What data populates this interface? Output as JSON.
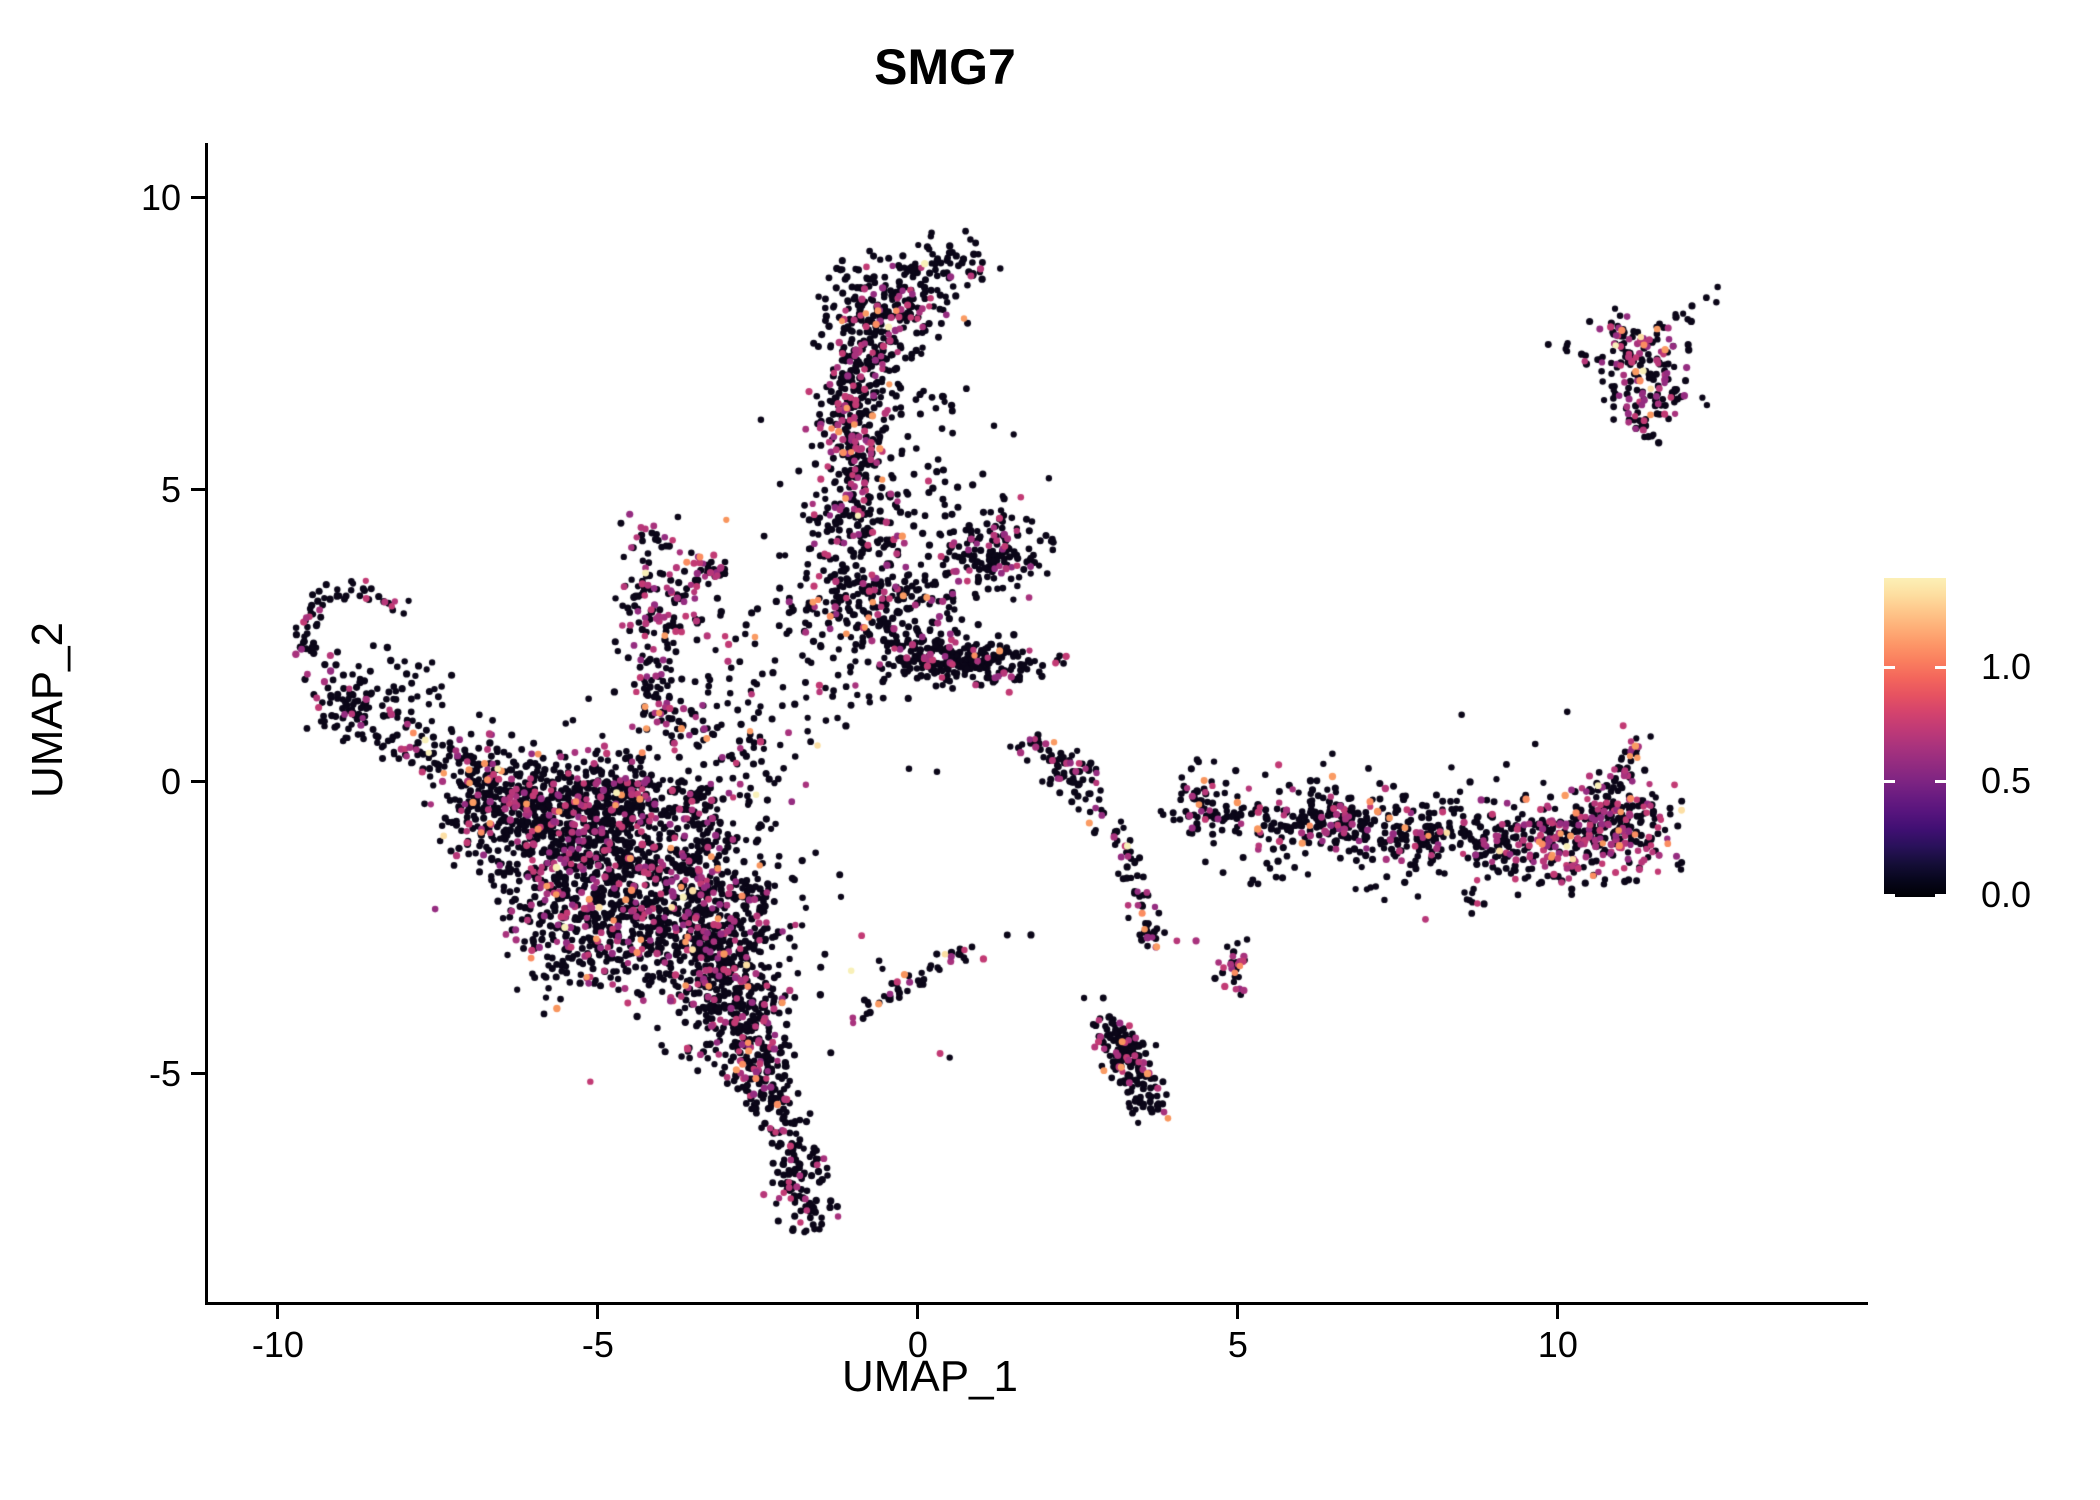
{
  "figure": {
    "background": "#ffffff"
  },
  "chart_data": {
    "type": "scatter",
    "title": "SMG7",
    "xlabel": "UMAP_1",
    "ylabel": "UMAP_2",
    "xlim": [
      -11.14,
      14.8
    ],
    "ylim": [
      -8.905,
      10.94
    ],
    "x_ticks": [
      -10,
      -5,
      0,
      5,
      10
    ],
    "y_ticks": [
      10,
      5,
      0,
      -5
    ],
    "grid": false,
    "legend_position": "right",
    "colorbar": {
      "tick_labels": [
        "1.0",
        "0.5",
        "0.0"
      ],
      "tick_values": [
        1.0,
        0.5,
        0.0
      ],
      "vmin": 0.0,
      "vmax": 1.39,
      "gradient_bottom_to_top": [
        "#000004",
        "#07061c",
        "#150e38",
        "#29115a",
        "#3f0f72",
        "#56147d",
        "#6a1c81",
        "#802582",
        "#952c80",
        "#aa337d",
        "#c03a76",
        "#d4436d",
        "#e65261",
        "#f3655c",
        "#fa7d5e",
        "#fd9567",
        "#feae77",
        "#fec68a",
        "#fddea0",
        "#fcf0b6"
      ]
    },
    "point_radius": 3.4,
    "palette": {
      "b": [
        "#0b0618"
      ],
      "m": [
        "#b73779",
        "#a8327d",
        "#c23a74",
        "#952c80"
      ],
      "o": [
        "#f8955d",
        "#fb8d61",
        "#fa9b63"
      ],
      "p": [
        "#fcdfa4",
        "#f8f0b8"
      ]
    },
    "mixes": {
      "low": [
        0.895,
        0.09,
        0.012,
        0.003
      ],
      "mid": [
        0.795,
        0.18,
        0.02,
        0.005
      ],
      "high": [
        0.6,
        0.345,
        0.045,
        0.01
      ]
    },
    "seed": 7,
    "clusters": [
      {
        "t": "g",
        "x": -0.55,
        "y": 8.05,
        "sx": 0.5,
        "sy": 0.48,
        "n": 240,
        "m": "mid"
      },
      {
        "t": "g",
        "x": 0.62,
        "y": 8.95,
        "sx": 0.28,
        "sy": 0.24,
        "n": 40,
        "m": "low"
      },
      {
        "t": "g",
        "x": -0.9,
        "y": 7.0,
        "sx": 0.34,
        "sy": 0.45,
        "n": 120,
        "m": "mid"
      },
      {
        "t": "s",
        "x1": -0.15,
        "y1": 8.5,
        "x2": 0.32,
        "y2": 8.72,
        "j": 0.14,
        "n": 10,
        "m": "low"
      },
      {
        "t": "g",
        "x": -1.02,
        "y": 5.9,
        "sx": 0.3,
        "sy": 0.5,
        "n": 150,
        "m": "high"
      },
      {
        "t": "g",
        "x": -1.08,
        "y": 4.6,
        "sx": 0.35,
        "sy": 0.5,
        "n": 150,
        "m": "mid"
      },
      {
        "t": "g",
        "x": -0.75,
        "y": 3.1,
        "sx": 0.6,
        "sy": 0.5,
        "n": 260,
        "m": "mid"
      },
      {
        "t": "g",
        "x": 1.05,
        "y": 3.9,
        "sx": 0.45,
        "sy": 0.4,
        "n": 170,
        "m": "mid"
      },
      {
        "t": "g",
        "x": 0.9,
        "y": 2.05,
        "sx": 0.55,
        "sy": 0.2,
        "n": 150,
        "m": "low"
      },
      {
        "t": "g",
        "x": 0.05,
        "y": 2.2,
        "sx": 0.45,
        "sy": 0.3,
        "n": 120,
        "m": "mid"
      },
      {
        "t": "g",
        "x": -0.1,
        "y": 5.6,
        "sx": 0.5,
        "sy": 0.8,
        "n": 55,
        "m": "low"
      },
      {
        "t": "s",
        "x1": -4.5,
        "y1": 4.42,
        "x2": -3.05,
        "y2": 3.52,
        "j": 0.1,
        "n": 32,
        "m": "high"
      },
      {
        "t": "s",
        "x1": -4.42,
        "y1": 4.25,
        "x2": -4.1,
        "y2": 1.65,
        "j": 0.12,
        "n": 40,
        "m": "high"
      },
      {
        "t": "g",
        "x": -4.0,
        "y": 3.0,
        "sx": 0.38,
        "sy": 0.65,
        "rot": -20,
        "n": 110,
        "m": "high"
      },
      {
        "t": "g",
        "x": -4.15,
        "y": 1.35,
        "sx": 0.18,
        "sy": 0.3,
        "n": 40,
        "m": "high"
      },
      {
        "t": "s",
        "x1": -3.95,
        "y1": 1.1,
        "x2": -2.7,
        "y2": 0.55,
        "j": 0.22,
        "n": 55,
        "m": "mid"
      },
      {
        "t": "g",
        "x": -2.9,
        "y": 2.2,
        "sx": 0.5,
        "sy": 0.9,
        "n": 45,
        "m": "low"
      },
      {
        "t": "a",
        "x": -8.8,
        "y": 2.5,
        "r": 0.8,
        "a1": 30,
        "a2": 215,
        "j": 0.1,
        "n": 60,
        "m": "mid"
      },
      {
        "t": "g",
        "x": -8.95,
        "y": 1.35,
        "sx": 0.3,
        "sy": 0.35,
        "n": 85,
        "m": "mid"
      },
      {
        "t": "s",
        "x1": -8.55,
        "y1": 0.95,
        "x2": -6.4,
        "y2": 0.2,
        "j": 0.3,
        "n": 130,
        "m": "mid"
      },
      {
        "t": "s",
        "x1": -8.3,
        "y1": 2.2,
        "x2": -7.6,
        "y2": 1.4,
        "j": 0.25,
        "n": 25,
        "m": "low"
      },
      {
        "t": "g",
        "x": -5.7,
        "y": -0.8,
        "sx": 0.8,
        "sy": 0.55,
        "n": 400,
        "m": "mid"
      },
      {
        "t": "g",
        "x": -4.4,
        "y": -1.5,
        "sx": 0.85,
        "sy": 0.8,
        "n": 640,
        "m": "mid"
      },
      {
        "t": "g",
        "x": -3.3,
        "y": -2.5,
        "sx": 0.6,
        "sy": 0.7,
        "n": 400,
        "m": "mid"
      },
      {
        "t": "g",
        "x": -2.95,
        "y": -3.7,
        "sx": 0.45,
        "sy": 0.55,
        "n": 240,
        "m": "mid"
      },
      {
        "t": "g",
        "x": -2.6,
        "y": -4.75,
        "sx": 0.3,
        "sy": 0.4,
        "n": 130,
        "m": "mid"
      },
      {
        "t": "g",
        "x": -6.6,
        "y": -0.35,
        "sx": 0.5,
        "sy": 0.35,
        "n": 140,
        "m": "mid"
      },
      {
        "t": "g",
        "x": -4.5,
        "y": -0.2,
        "sx": 1.1,
        "sy": 0.28,
        "n": 200,
        "m": "mid"
      },
      {
        "t": "g",
        "x": -5.3,
        "y": -2.6,
        "sx": 0.6,
        "sy": 0.55,
        "n": 200,
        "m": "mid"
      },
      {
        "t": "g",
        "x": -4.4,
        "y": -1.8,
        "sx": 1.5,
        "sy": 1.35,
        "n": 150,
        "m": "low"
      },
      {
        "t": "s",
        "x1": -2.45,
        "y1": -5.1,
        "x2": -1.95,
        "y2": -6.4,
        "j": 0.18,
        "n": 70,
        "m": "mid"
      },
      {
        "t": "g",
        "x": -1.85,
        "y": -7.0,
        "sx": 0.26,
        "sy": 0.38,
        "n": 90,
        "m": "mid"
      },
      {
        "t": "s",
        "x1": -1.05,
        "y1": -4.05,
        "x2": 0.8,
        "y2": -2.8,
        "j": 0.09,
        "n": 48,
        "m": "mid"
      },
      {
        "t": "s",
        "x1": 1.6,
        "y1": 0.75,
        "x2": 2.5,
        "y2": 0.1,
        "j": 0.15,
        "n": 40,
        "m": "mid"
      },
      {
        "t": "g",
        "x": 2.35,
        "y": 0.1,
        "sx": 0.22,
        "sy": 0.18,
        "n": 30,
        "m": "mid"
      },
      {
        "t": "s",
        "x1": 2.55,
        "y1": -0.1,
        "x2": 3.4,
        "y2": -1.45,
        "j": 0.12,
        "n": 35,
        "m": "mid"
      },
      {
        "t": "s",
        "x1": 3.3,
        "y1": -1.5,
        "x2": 3.55,
        "y2": -2.4,
        "j": 0.1,
        "n": 22,
        "m": "mid"
      },
      {
        "t": "g",
        "x": 3.55,
        "y": -2.55,
        "sx": 0.15,
        "sy": 0.15,
        "n": 22,
        "m": "high"
      },
      {
        "t": "g",
        "x": 4.95,
        "y": -3.2,
        "sx": 0.18,
        "sy": 0.25,
        "n": 30,
        "m": "high"
      },
      {
        "t": "s",
        "x1": 2.95,
        "y1": -4.2,
        "x2": 3.6,
        "y2": -5.65,
        "j": 0.16,
        "n": 130,
        "m": "mid"
      },
      {
        "t": "g",
        "x": 3.2,
        "y": -4.7,
        "sx": 0.2,
        "sy": 0.3,
        "n": 40,
        "m": "mid"
      },
      {
        "t": "s",
        "x1": 4.3,
        "y1": -0.55,
        "x2": 7.0,
        "y2": -0.75,
        "j": 0.25,
        "n": 150,
        "m": "mid"
      },
      {
        "t": "s",
        "x1": 7.0,
        "y1": -0.8,
        "x2": 9.2,
        "y2": -1.0,
        "j": 0.28,
        "n": 170,
        "m": "mid"
      },
      {
        "t": "g",
        "x": 6.45,
        "y": -0.7,
        "sx": 0.35,
        "sy": 0.25,
        "n": 60,
        "m": "mid"
      },
      {
        "t": "g",
        "x": 9.85,
        "y": -0.95,
        "sx": 0.55,
        "sy": 0.4,
        "n": 230,
        "m": "high"
      },
      {
        "t": "g",
        "x": 10.9,
        "y": -0.8,
        "sx": 0.45,
        "sy": 0.45,
        "n": 200,
        "m": "high"
      },
      {
        "t": "s",
        "x1": 10.75,
        "y1": -0.15,
        "x2": 11.25,
        "y2": 0.8,
        "j": 0.12,
        "n": 35,
        "m": "high"
      },
      {
        "t": "s",
        "x1": 4.8,
        "y1": -1.45,
        "x2": 9.3,
        "y2": -1.75,
        "j": 0.35,
        "n": 45,
        "m": "low"
      },
      {
        "t": "s",
        "x1": 5.2,
        "y1": -0.1,
        "x2": 9.0,
        "y2": -0.35,
        "j": 0.3,
        "n": 40,
        "m": "low"
      },
      {
        "t": "g",
        "x": 4.35,
        "y": -0.35,
        "sx": 0.25,
        "sy": 0.3,
        "n": 40,
        "m": "mid"
      },
      {
        "t": "g",
        "x": 11.15,
        "y": 7.3,
        "sx": 0.33,
        "sy": 0.28,
        "n": 110,
        "m": "high"
      },
      {
        "t": "g",
        "x": 11.4,
        "y": 6.55,
        "sx": 0.4,
        "sy": 0.25,
        "n": 70,
        "m": "high"
      },
      {
        "t": "s",
        "x1": 9.95,
        "y1": 7.45,
        "x2": 10.5,
        "y2": 7.25,
        "j": 0.08,
        "n": 10,
        "m": "mid"
      },
      {
        "t": "s",
        "x1": 10.6,
        "y1": 8.0,
        "x2": 11.05,
        "y2": 7.6,
        "j": 0.09,
        "n": 10,
        "m": "mid"
      },
      {
        "t": "s",
        "x1": 11.75,
        "y1": 7.8,
        "x2": 12.35,
        "y2": 8.35,
        "j": 0.07,
        "n": 10,
        "m": "high"
      },
      {
        "t": "s",
        "x1": 11.0,
        "y1": 6.1,
        "x2": 11.5,
        "y2": 6.0,
        "j": 0.1,
        "n": 10,
        "m": "mid"
      },
      {
        "t": "g",
        "x": -1.6,
        "y": 1.4,
        "sx": 0.8,
        "sy": 0.6,
        "n": 45,
        "m": "low"
      }
    ],
    "points": [
      [
        1.45,
        5.95,
        "b"
      ],
      [
        2.0,
        5.2,
        "b"
      ],
      [
        1.3,
        4.85,
        "b"
      ],
      [
        -2.5,
        6.2,
        "b"
      ],
      [
        -2.2,
        5.1,
        "b"
      ],
      [
        0.35,
        6.6,
        "b"
      ],
      [
        -6.9,
        1.15,
        "b"
      ],
      [
        -5.55,
        1.0,
        "b"
      ],
      [
        0.3,
        -4.65,
        "m"
      ],
      [
        0.45,
        -4.72,
        "b"
      ],
      [
        1.35,
        -2.62,
        "b"
      ],
      [
        1.72,
        -2.62,
        "b"
      ],
      [
        4.0,
        -2.72,
        "m"
      ],
      [
        4.3,
        -2.72,
        "m"
      ],
      [
        2.55,
        -3.7,
        "b"
      ],
      [
        2.85,
        -3.7,
        "b"
      ],
      [
        8.45,
        1.15,
        "b"
      ],
      [
        9.6,
        0.65,
        "b"
      ],
      [
        10.1,
        1.2,
        "b"
      ],
      [
        9.15,
        0.3,
        "b"
      ],
      [
        3.75,
        -0.5,
        "b"
      ],
      [
        3.95,
        -0.65,
        "b"
      ],
      [
        -0.6,
        -3.2,
        "b"
      ],
      [
        -1.5,
        -2.95,
        "b"
      ]
    ]
  }
}
